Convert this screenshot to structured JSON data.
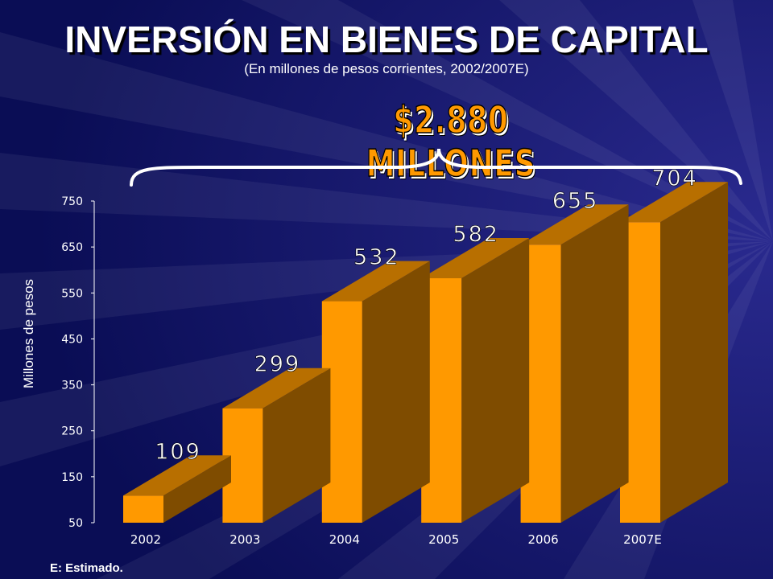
{
  "chart_data": {
    "type": "bar",
    "title": "INVERSIÓN EN BIENES DE CAPITAL",
    "subtitle": "(En millones de pesos corrientes, 2002/2007E)",
    "ylabel": "Millones de pesos",
    "xlabel": "",
    "categories": [
      "2002",
      "2003",
      "2004",
      "2005",
      "2006",
      "2007E"
    ],
    "values": [
      109,
      299,
      532,
      582,
      655,
      704
    ],
    "value_labels": [
      "109",
      "299",
      "532",
      "582",
      "655",
      "704"
    ],
    "ylim": [
      50,
      750
    ],
    "yticks": [
      "50",
      "150",
      "250",
      "350",
      "450",
      "550",
      "650",
      "750"
    ],
    "annotation": "$2.880 MILLONES",
    "footnote": "E: Estimado.",
    "grid": false,
    "bar_color": "#ff9900",
    "bar_side_color": "#7f4c00",
    "bar_top_color": "#b86f00"
  }
}
